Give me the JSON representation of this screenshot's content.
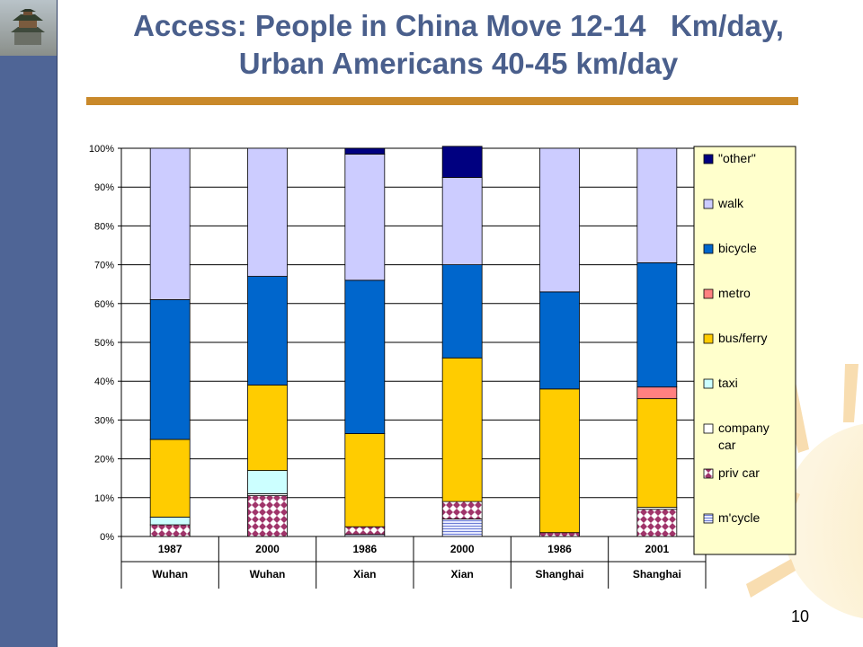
{
  "slide": {
    "title_line1": "Access: People in China Move 12-14   Km/day,",
    "title_line2": "Urban Americans 40-45 km/day",
    "page_number": "10"
  },
  "colors": {
    "sidebar": "#4f6596",
    "title": "#4a5f8c",
    "rule": "#c9892a",
    "legend_bg": "#ffffcc"
  },
  "chart_data": {
    "type": "bar",
    "stacked": true,
    "ylim": [
      0,
      100
    ],
    "yticks": [
      "0%",
      "10%",
      "20%",
      "30%",
      "40%",
      "50%",
      "60%",
      "70%",
      "80%",
      "90%",
      "100%"
    ],
    "categories": [
      {
        "year": "1987",
        "city": "Wuhan"
      },
      {
        "year": "2000",
        "city": "Wuhan"
      },
      {
        "year": "1986",
        "city": "Xian"
      },
      {
        "year": "2000",
        "city": "Xian"
      },
      {
        "year": "1986",
        "city": "Shanghai"
      },
      {
        "year": "2001",
        "city": "Shanghai"
      }
    ],
    "series": [
      {
        "name": "m'cycle",
        "color": "#c8cdf0",
        "pattern": "hlines",
        "values": [
          0,
          0,
          0.5,
          4.5,
          0,
          0
        ]
      },
      {
        "name": "priv car",
        "color": "#ffffff",
        "pattern": "diamonds",
        "values": [
          3,
          10.5,
          2,
          4.5,
          1,
          7
        ]
      },
      {
        "name": "company car",
        "color": "#ffffff",
        "pattern": "none",
        "values": [
          0,
          0.5,
          0,
          0,
          0,
          0.5
        ]
      },
      {
        "name": "taxi",
        "color": "#ccffff",
        "pattern": "none",
        "values": [
          2,
          6,
          0,
          0,
          0,
          0
        ]
      },
      {
        "name": "bus/ferry",
        "color": "#ffcc00",
        "pattern": "none",
        "values": [
          20,
          22,
          24,
          37,
          37,
          28
        ]
      },
      {
        "name": "metro",
        "color": "#ff8080",
        "pattern": "none",
        "values": [
          0,
          0,
          0,
          0,
          0,
          3
        ]
      },
      {
        "name": "bicycle",
        "color": "#0066cc",
        "pattern": "none",
        "values": [
          36,
          28,
          39.5,
          24,
          25,
          32
        ]
      },
      {
        "name": "walk",
        "color": "#ccccff",
        "pattern": "none",
        "values": [
          39,
          33,
          32.5,
          22.5,
          37,
          29.5
        ]
      },
      {
        "name": "\"other\"",
        "color": "#000080",
        "pattern": "none",
        "values": [
          0,
          0,
          1.5,
          8,
          0,
          0
        ]
      }
    ],
    "legend": {
      "placement": "right",
      "entries": [
        {
          "label": "\"other\"",
          "series": 8
        },
        {
          "label": "walk",
          "series": 7
        },
        {
          "label": "bicycle",
          "series": 6
        },
        {
          "label": "metro",
          "series": 5
        },
        {
          "label": "bus/ferry",
          "series": 4
        },
        {
          "label": "taxi",
          "series": 3
        },
        {
          "label": "company car",
          "series": 2
        },
        {
          "label": "priv car",
          "series": 1
        },
        {
          "label": "m'cycle",
          "series": 0
        }
      ]
    }
  }
}
